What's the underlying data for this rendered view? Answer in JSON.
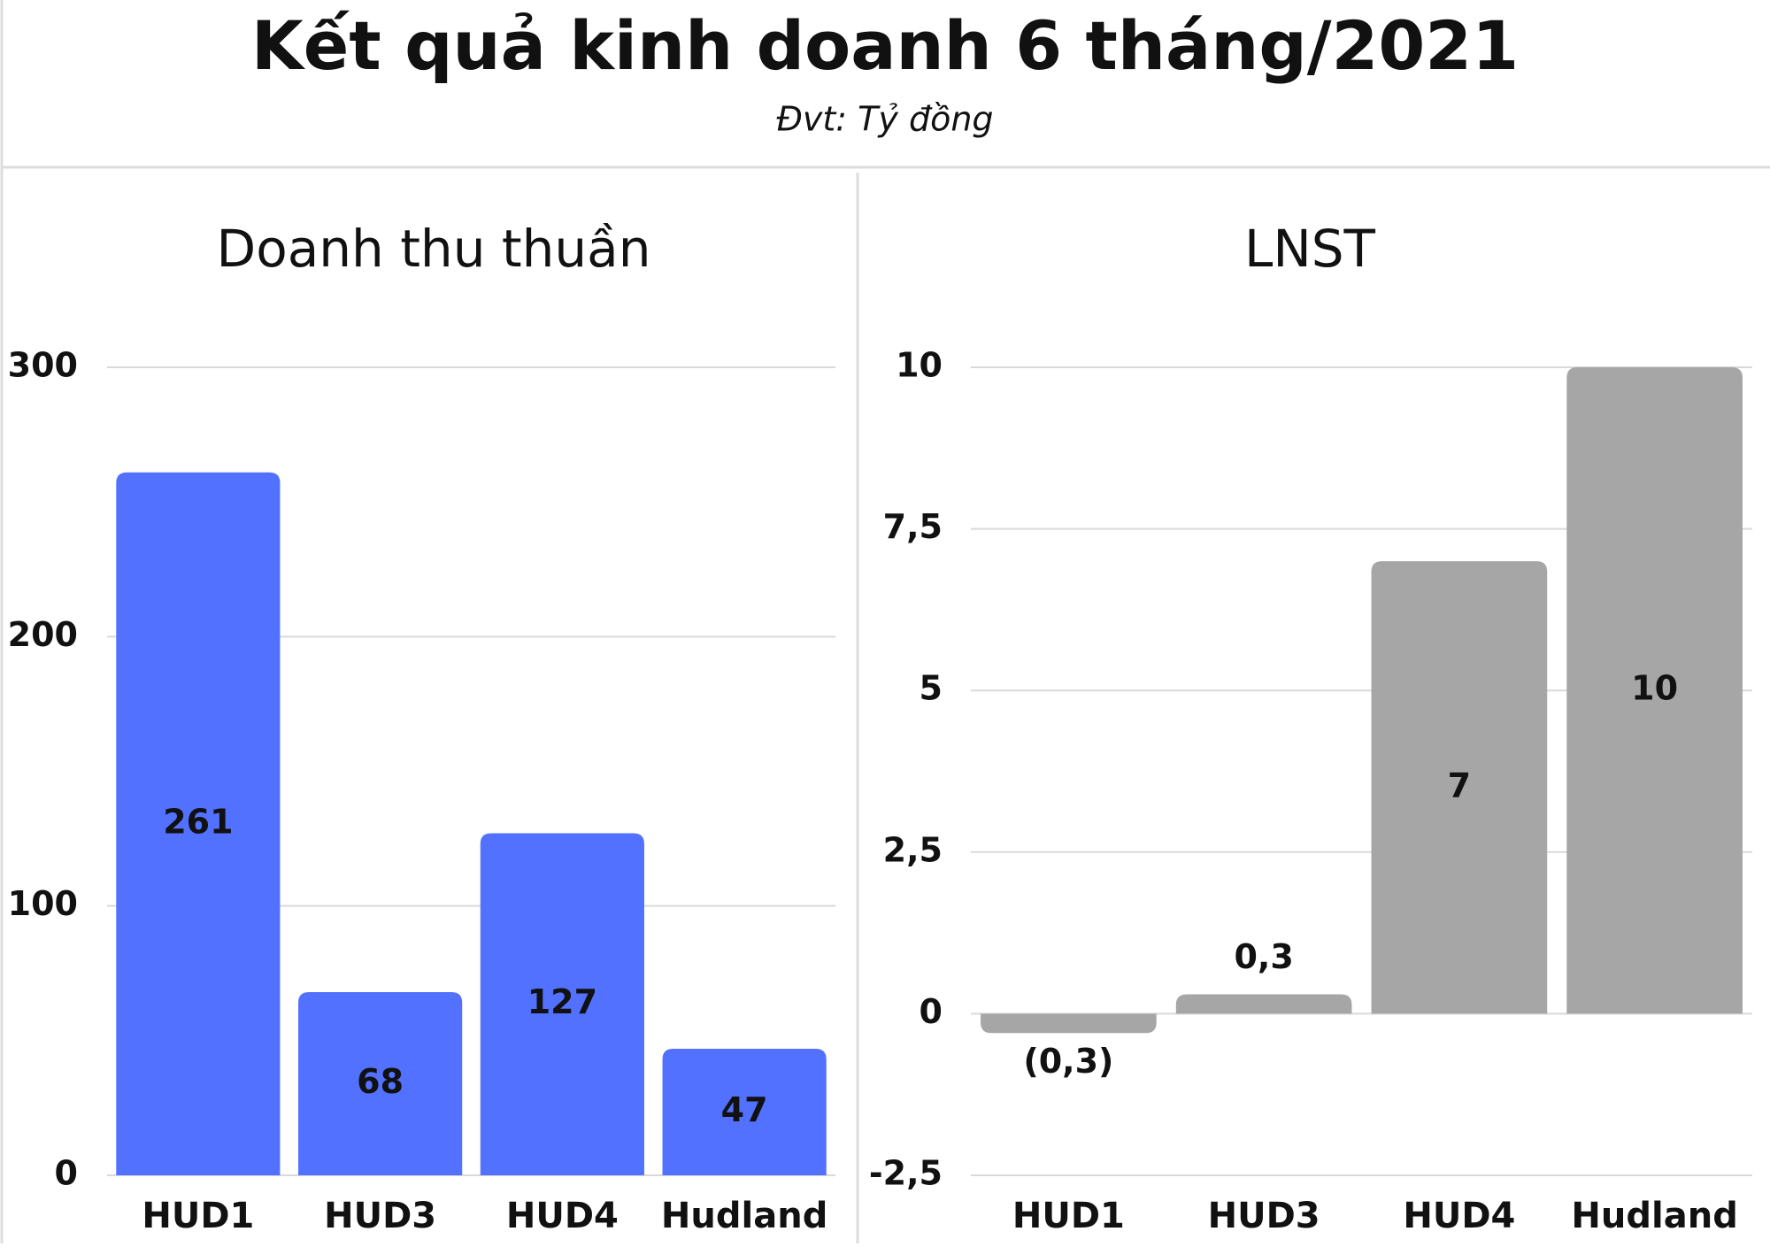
{
  "title": "Kết quả kinh doanh 6 tháng/2021",
  "subtitle": "Đvt: Tỷ đồng",
  "chart_data": [
    {
      "type": "bar",
      "title": "Doanh thu thuần",
      "categories": [
        "HUD1",
        "HUD3",
        "HUD4",
        "Hudland"
      ],
      "values": [
        261,
        68,
        127,
        47
      ],
      "color": "#5271ff",
      "ylim": [
        0,
        300
      ],
      "yticks": [
        0,
        100,
        200,
        300
      ],
      "grid": true
    },
    {
      "type": "bar",
      "title": "LNST",
      "categories": [
        "HUD1",
        "HUD3",
        "HUD4",
        "Hudland"
      ],
      "values": [
        -0.3,
        0.3,
        7,
        10
      ],
      "value_labels": [
        "(0,3)",
        "0,3",
        "7",
        "10"
      ],
      "color": "#a6a6a6",
      "ylim": [
        -2.5,
        10
      ],
      "yticks": [
        {
          "value": -2.5,
          "label": "-2,5"
        },
        0,
        {
          "value": 2.5,
          "label": "2,5"
        },
        5,
        {
          "value": 7.5,
          "label": "7,5"
        },
        10
      ],
      "grid": true
    }
  ]
}
